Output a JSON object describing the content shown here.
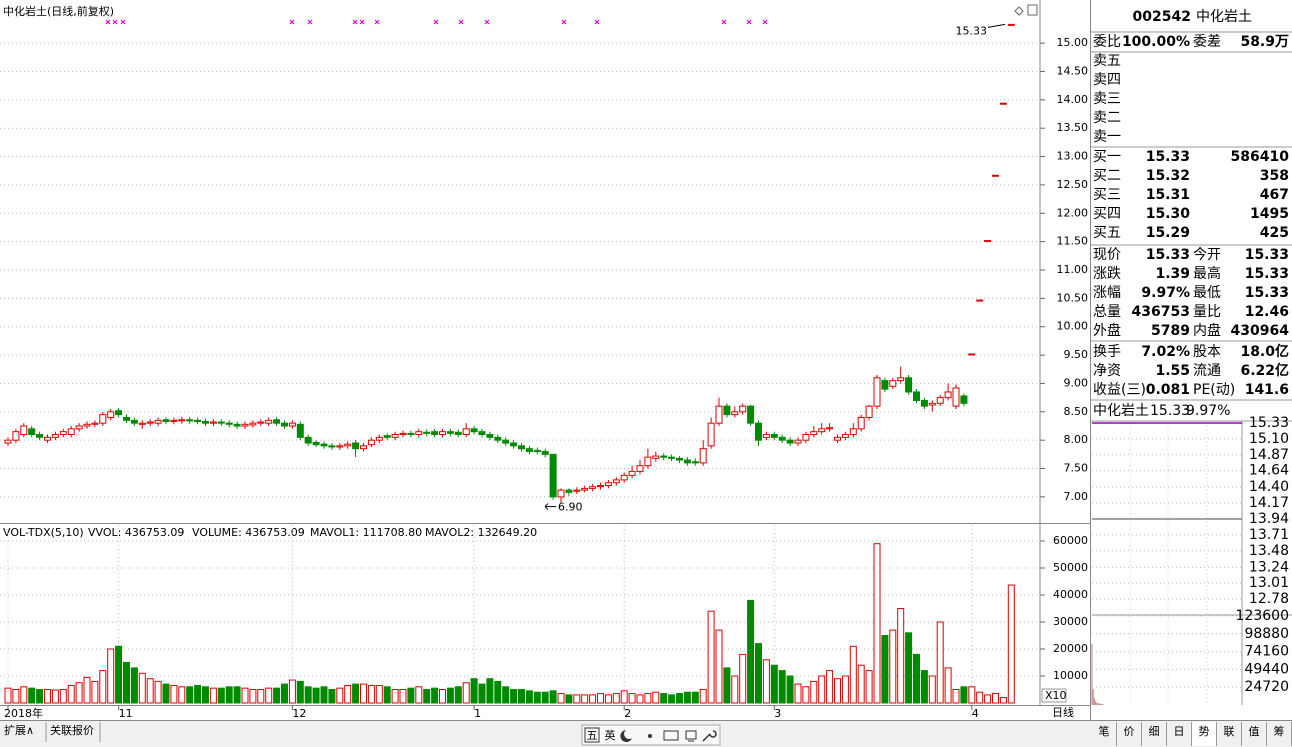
{
  "chart_data": {
    "type": "candlestick",
    "title": "中化岩土(日线,前复权)",
    "period": "日线",
    "categories": [
      "2018年",
      null,
      null,
      null,
      null,
      null,
      null,
      null,
      null,
      null,
      null,
      null,
      null,
      null,
      "11",
      null,
      null,
      null,
      null,
      null,
      null,
      null,
      null,
      null,
      null,
      null,
      null,
      null,
      null,
      null,
      null,
      null,
      null,
      null,
      null,
      null,
      "12",
      null,
      null,
      null,
      null,
      null,
      null,
      null,
      null,
      null,
      null,
      null,
      null,
      null,
      null,
      null,
      null,
      null,
      null,
      null,
      null,
      null,
      null,
      "1",
      null,
      null,
      null,
      null,
      null,
      null,
      null,
      null,
      null,
      null,
      null,
      null,
      null,
      null,
      null,
      null,
      null,
      null,
      "2",
      null,
      null,
      null,
      null,
      null,
      null,
      null,
      null,
      null,
      null,
      null,
      null,
      null,
      null,
      null,
      null,
      null,
      null,
      "3",
      null,
      null,
      null,
      null,
      null,
      null,
      null,
      null,
      null,
      null,
      null,
      null,
      null,
      null,
      null,
      null,
      null,
      null,
      null,
      null,
      null,
      null,
      null,
      null,
      "4",
      null,
      null,
      null,
      null,
      null
    ],
    "open": [
      7.95,
      8.0,
      8.1,
      8.2,
      8.1,
      8.0,
      8.05,
      8.1,
      8.1,
      8.2,
      8.25,
      8.28,
      8.3,
      8.4,
      8.52,
      8.4,
      8.35,
      8.28,
      8.3,
      8.3,
      8.36,
      8.33,
      8.34,
      8.36,
      8.35,
      8.33,
      8.3,
      8.32,
      8.3,
      8.28,
      8.25,
      8.27,
      8.3,
      8.3,
      8.36,
      8.3,
      8.25,
      8.28,
      8.05,
      7.96,
      7.93,
      7.9,
      7.88,
      7.9,
      7.95,
      7.85,
      7.92,
      8.0,
      8.08,
      8.05,
      8.1,
      8.12,
      8.1,
      8.14,
      8.15,
      8.1,
      8.15,
      8.14,
      8.1,
      8.2,
      8.15,
      8.1,
      8.05,
      8.0,
      7.95,
      7.9,
      7.85,
      7.82,
      7.8,
      7.75,
      7.0,
      7.12,
      7.1,
      7.12,
      7.15,
      7.18,
      7.2,
      7.25,
      7.3,
      7.38,
      7.45,
      7.55,
      7.68,
      7.72,
      7.7,
      7.68,
      7.65,
      7.62,
      7.6,
      7.9,
      8.3,
      8.6,
      8.45,
      8.5,
      8.6,
      8.3,
      8.05,
      8.1,
      8.05,
      8.0,
      7.95,
      8.0,
      8.1,
      8.15,
      8.2,
      8.0,
      8.05,
      8.1,
      8.2,
      8.4,
      8.6,
      9.05,
      8.95,
      9.05,
      9.1,
      8.85,
      8.7,
      8.62,
      8.65,
      8.75,
      8.6,
      8.78,
      9.52,
      10.47,
      11.52,
      12.67,
      13.94,
      15.33
    ],
    "high": [
      8.05,
      8.2,
      8.3,
      8.25,
      8.15,
      8.1,
      8.15,
      8.2,
      8.25,
      8.3,
      8.33,
      8.35,
      8.5,
      8.55,
      8.57,
      8.45,
      8.4,
      8.35,
      8.37,
      8.4,
      8.4,
      8.4,
      8.41,
      8.41,
      8.4,
      8.38,
      8.37,
      8.37,
      8.35,
      8.33,
      8.33,
      8.35,
      8.37,
      8.4,
      8.41,
      8.35,
      8.35,
      8.33,
      8.1,
      8.0,
      7.98,
      7.95,
      7.95,
      7.98,
      8.0,
      7.95,
      8.05,
      8.1,
      8.12,
      8.15,
      8.17,
      8.17,
      8.2,
      8.19,
      8.2,
      8.2,
      8.2,
      8.19,
      8.3,
      8.25,
      8.2,
      8.15,
      8.1,
      8.05,
      8.0,
      7.95,
      7.9,
      7.87,
      7.85,
      7.75,
      7.15,
      7.15,
      7.17,
      7.2,
      7.23,
      7.25,
      7.3,
      7.35,
      7.43,
      7.55,
      7.65,
      7.85,
      7.8,
      7.77,
      7.75,
      7.72,
      7.7,
      7.68,
      8.0,
      8.4,
      8.75,
      8.65,
      8.6,
      8.65,
      8.62,
      8.35,
      8.15,
      8.15,
      8.1,
      8.05,
      8.05,
      8.15,
      8.25,
      8.3,
      8.3,
      8.1,
      8.15,
      8.3,
      8.45,
      8.62,
      9.15,
      9.1,
      9.1,
      9.3,
      9.15,
      8.9,
      8.75,
      8.7,
      8.8,
      9.0,
      8.98,
      8.82,
      9.52,
      10.47,
      11.52,
      12.67,
      13.94,
      15.33
    ],
    "low": [
      7.9,
      7.95,
      8.05,
      8.05,
      8.0,
      7.95,
      8.0,
      8.05,
      8.05,
      8.15,
      8.2,
      8.23,
      8.25,
      8.35,
      8.4,
      8.3,
      8.25,
      8.2,
      8.25,
      8.25,
      8.28,
      8.28,
      8.29,
      8.29,
      8.28,
      8.25,
      8.25,
      8.25,
      8.23,
      8.2,
      8.2,
      8.22,
      8.25,
      8.25,
      8.25,
      8.2,
      8.2,
      8.0,
      7.9,
      7.88,
      7.85,
      7.83,
      7.83,
      7.85,
      7.7,
      7.8,
      7.88,
      7.95,
      8.0,
      8.0,
      8.05,
      8.05,
      8.05,
      8.07,
      8.05,
      8.05,
      8.07,
      8.05,
      8.05,
      8.1,
      8.05,
      8.0,
      7.95,
      7.9,
      7.85,
      7.8,
      7.75,
      7.75,
      7.7,
      6.95,
      6.9,
      7.02,
      7.05,
      7.08,
      7.1,
      7.13,
      7.15,
      7.2,
      7.25,
      7.33,
      7.4,
      7.5,
      7.62,
      7.65,
      7.63,
      7.6,
      7.55,
      7.55,
      7.55,
      7.85,
      8.25,
      8.4,
      8.4,
      8.45,
      8.25,
      7.9,
      8.0,
      8.0,
      7.95,
      7.9,
      7.9,
      7.95,
      8.05,
      8.1,
      8.15,
      7.95,
      8.0,
      8.05,
      8.15,
      8.35,
      8.55,
      8.85,
      8.9,
      9.0,
      8.8,
      8.65,
      8.55,
      8.5,
      8.6,
      8.7,
      8.55,
      8.6,
      9.52,
      10.47,
      11.52,
      12.67,
      13.94,
      15.33
    ],
    "close": [
      8.0,
      8.15,
      8.25,
      8.1,
      8.05,
      8.05,
      8.1,
      8.15,
      8.2,
      8.25,
      8.28,
      8.3,
      8.45,
      8.5,
      8.45,
      8.35,
      8.3,
      8.3,
      8.32,
      8.35,
      8.33,
      8.35,
      8.36,
      8.34,
      8.33,
      8.3,
      8.32,
      8.3,
      8.28,
      8.25,
      8.28,
      8.3,
      8.32,
      8.35,
      8.3,
      8.25,
      8.3,
      8.05,
      7.95,
      7.92,
      7.9,
      7.88,
      7.9,
      7.93,
      7.85,
      7.9,
      8.0,
      8.05,
      8.05,
      8.1,
      8.12,
      8.1,
      8.15,
      8.12,
      8.1,
      8.15,
      8.12,
      8.1,
      8.2,
      8.15,
      8.1,
      8.05,
      8.0,
      7.95,
      7.9,
      7.85,
      7.8,
      7.8,
      7.75,
      7.0,
      7.12,
      7.08,
      7.12,
      7.15,
      7.18,
      7.2,
      7.25,
      7.3,
      7.38,
      7.45,
      7.55,
      7.7,
      7.72,
      7.7,
      7.68,
      7.65,
      7.6,
      7.6,
      7.85,
      8.3,
      8.6,
      8.45,
      8.5,
      8.6,
      8.3,
      8.0,
      8.1,
      8.05,
      8.0,
      7.95,
      8.0,
      8.1,
      8.15,
      8.2,
      8.22,
      8.05,
      8.1,
      8.2,
      8.4,
      8.6,
      9.1,
      8.9,
      9.05,
      9.1,
      8.85,
      8.7,
      8.6,
      8.65,
      8.75,
      8.85,
      8.92,
      8.65,
      9.52,
      10.47,
      11.52,
      12.67,
      13.94,
      15.33
    ],
    "ylim": [
      6.54,
      15.76
    ],
    "yticks": [
      {
        "value": 7,
        "label": "7.00"
      },
      {
        "value": 7.5,
        "label": "7.50"
      },
      {
        "value": 8,
        "label": "8.00"
      },
      {
        "value": 8.5,
        "label": "8.50"
      },
      {
        "value": 9,
        "label": "9.00"
      },
      {
        "value": 9.5,
        "label": "9.50"
      },
      {
        "value": 10,
        "label": "10.00"
      },
      {
        "value": 10.5,
        "label": "10.50"
      },
      {
        "value": 11,
        "label": "11.00"
      },
      {
        "value": 11.5,
        "label": "11.50"
      },
      {
        "value": 12,
        "label": "12.00"
      },
      {
        "value": 12.5,
        "label": "12.50"
      },
      {
        "value": 13,
        "label": "13.00"
      },
      {
        "value": 13.5,
        "label": "13.50"
      },
      {
        "value": 14,
        "label": "14.00"
      },
      {
        "value": 14.5,
        "label": "14.50"
      },
      {
        "value": 15,
        "label": "15.00"
      }
    ],
    "grid": true,
    "up_color": "#e00000",
    "down_color": "#008a00",
    "annotations": [
      {
        "value": 15.33,
        "label": "15.33"
      },
      {
        "value": 6.9,
        "label": "6.90"
      }
    ],
    "volume": {
      "indicator": "VOL-TDX(5,10)",
      "legend": [
        "VVOL: 436753.09",
        "VOLUME: 436753.09",
        "MAVOL1: 111708.80",
        "MAVOL2: 132649.20"
      ],
      "multiplier": "X10",
      "values": [
        5500,
        5000,
        6000,
        5500,
        5000,
        5000,
        4800,
        5000,
        6500,
        7500,
        9500,
        8000,
        12000,
        20000,
        21000,
        15000,
        13000,
        11000,
        9000,
        8000,
        7000,
        6500,
        6000,
        6000,
        6500,
        6000,
        5500,
        5500,
        6000,
        6000,
        5500,
        5000,
        5000,
        5500,
        5500,
        7000,
        8500,
        8000,
        6000,
        5500,
        6000,
        5000,
        5500,
        6500,
        7000,
        7000,
        6500,
        6500,
        6000,
        5000,
        5000,
        5500,
        6000,
        5000,
        5500,
        5000,
        5500,
        6000,
        7500,
        9000,
        7000,
        9000,
        8000,
        6000,
        5000,
        5000,
        4500,
        4000,
        4000,
        4500,
        3500,
        3000,
        3000,
        3000,
        3000,
        3500,
        3000,
        3500,
        4500,
        3500,
        3000,
        3500,
        4000,
        3500,
        3000,
        3500,
        4000,
        4000,
        5000,
        34000,
        27000,
        13000,
        10000,
        18000,
        38000,
        22000,
        16000,
        14000,
        12000,
        10000,
        7000,
        6000,
        8000,
        10000,
        12000,
        9000,
        10000,
        21000,
        14000,
        12000,
        59000,
        25000,
        27000,
        35000,
        26000,
        18000,
        12000,
        10000,
        30000,
        13000,
        5000,
        6000,
        6000,
        4000,
        3000,
        3500,
        2000,
        43675
      ],
      "ylim": [
        0,
        65000
      ],
      "yticks": [
        10000,
        20000,
        30000,
        40000,
        50000,
        60000
      ]
    }
  },
  "quote": {
    "code": "002542",
    "name": "中化岩土",
    "order_ratio": [
      "委比",
      "100.00%",
      "委差",
      "58.9万"
    ],
    "asks": [
      "卖五",
      "卖四",
      "卖三",
      "卖二",
      "卖一"
    ],
    "bids": [
      [
        "买一",
        "15.33",
        "586410"
      ],
      [
        "买二",
        "15.32",
        "358"
      ],
      [
        "买三",
        "15.31",
        "467"
      ],
      [
        "买四",
        "15.30",
        "1495"
      ],
      [
        "买五",
        "15.29",
        "425"
      ]
    ],
    "stats": [
      [
        "现价",
        "15.33",
        "今开",
        "15.33"
      ],
      [
        "涨跌",
        "1.39",
        "最高",
        "15.33"
      ],
      [
        "涨幅",
        "9.97%",
        "最低",
        "15.33"
      ],
      [
        "总量",
        "436753",
        "量比",
        "12.46"
      ],
      [
        "外盘",
        "5789",
        "内盘",
        "430964"
      ]
    ],
    "fundamentals": [
      [
        "换手",
        "7.02%",
        "股本",
        "18.0亿"
      ],
      [
        "净资",
        "1.55",
        "流通",
        "6.22亿"
      ],
      [
        "收益(三)",
        "0.081",
        "PE(动)",
        "141.6"
      ]
    ]
  },
  "intraday": {
    "name": "中化岩土",
    "price_label": "15.33",
    "change_label": "9.97%",
    "price": 15.33,
    "prev_close": 13.94,
    "ylim": [
      12.55,
      15.33
    ],
    "yticks": [
      15.33,
      {
        "value": 15.1,
        "label": "15.10"
      },
      14.87,
      14.64,
      {
        "value": 14.4,
        "label": "14.40"
      },
      14.17,
      13.94,
      13.71,
      13.48,
      13.24,
      13.01,
      12.78
    ],
    "volume_ylim": [
      0,
      123600
    ],
    "volume_ticks": [
      24720,
      49440,
      74160,
      98880,
      123600
    ],
    "volume": [
      85000,
      22000,
      9000,
      5000,
      3000,
      2500,
      2000,
      2000,
      1500,
      1500
    ]
  },
  "ui": {
    "bottom_left": [
      "扩展∧",
      "关联报价"
    ],
    "toolbar": [
      "五",
      "英"
    ],
    "tabs": [
      "笔",
      "价",
      "细",
      "日",
      "势",
      "联",
      "值",
      "筹"
    ]
  }
}
